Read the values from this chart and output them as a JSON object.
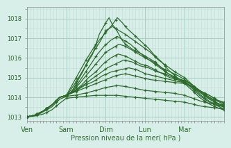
{
  "bg_color": "#d8eee8",
  "grid_major_color": "#a8ccc0",
  "grid_minor_color": "#c0ddd6",
  "line_color": "#2d6b2d",
  "xlabel": "Pression niveau de la mer( hPa )",
  "ylim": [
    1012.8,
    1018.6
  ],
  "xlim": [
    0,
    240
  ],
  "yticks": [
    1013,
    1014,
    1015,
    1016,
    1017,
    1018
  ],
  "day_labels": [
    "Ven",
    "Sam",
    "Dim",
    "Lun",
    "Mar"
  ],
  "day_positions": [
    0,
    48,
    96,
    144,
    192
  ],
  "series": [
    {
      "points": [
        [
          0,
          1013.0
        ],
        [
          10,
          1013.1
        ],
        [
          20,
          1013.3
        ],
        [
          30,
          1013.6
        ],
        [
          40,
          1014.0
        ],
        [
          48,
          1014.1
        ],
        [
          52,
          1014.3
        ],
        [
          60,
          1014.8
        ],
        [
          70,
          1015.5
        ],
        [
          80,
          1016.2
        ],
        [
          88,
          1017.2
        ],
        [
          96,
          1017.8
        ],
        [
          100,
          1018.05
        ],
        [
          104,
          1017.7
        ],
        [
          108,
          1017.5
        ],
        [
          112,
          1017.2
        ],
        [
          116,
          1016.9
        ],
        [
          120,
          1016.7
        ],
        [
          130,
          1016.4
        ],
        [
          140,
          1016.2
        ],
        [
          148,
          1016.0
        ],
        [
          156,
          1015.8
        ],
        [
          164,
          1015.5
        ],
        [
          172,
          1015.2
        ],
        [
          180,
          1015.0
        ],
        [
          192,
          1014.8
        ],
        [
          200,
          1014.5
        ],
        [
          210,
          1014.1
        ],
        [
          220,
          1013.8
        ],
        [
          230,
          1013.6
        ],
        [
          240,
          1013.4
        ]
      ]
    },
    {
      "points": [
        [
          0,
          1013.0
        ],
        [
          10,
          1013.1
        ],
        [
          20,
          1013.3
        ],
        [
          30,
          1013.6
        ],
        [
          40,
          1014.0
        ],
        [
          48,
          1014.1
        ],
        [
          60,
          1015.0
        ],
        [
          72,
          1015.9
        ],
        [
          84,
          1016.7
        ],
        [
          96,
          1017.3
        ],
        [
          104,
          1017.7
        ],
        [
          110,
          1018.05
        ],
        [
          116,
          1017.8
        ],
        [
          122,
          1017.5
        ],
        [
          130,
          1017.2
        ],
        [
          140,
          1016.8
        ],
        [
          148,
          1016.5
        ],
        [
          156,
          1016.1
        ],
        [
          164,
          1015.8
        ],
        [
          172,
          1015.4
        ],
        [
          180,
          1015.1
        ],
        [
          192,
          1014.7
        ],
        [
          200,
          1014.4
        ],
        [
          210,
          1014.0
        ],
        [
          220,
          1013.7
        ],
        [
          230,
          1013.5
        ],
        [
          240,
          1013.35
        ]
      ]
    },
    {
      "points": [
        [
          0,
          1013.0
        ],
        [
          10,
          1013.1
        ],
        [
          20,
          1013.3
        ],
        [
          30,
          1013.6
        ],
        [
          40,
          1014.0
        ],
        [
          48,
          1014.1
        ],
        [
          52,
          1014.2
        ],
        [
          56,
          1014.4
        ],
        [
          60,
          1014.7
        ],
        [
          68,
          1015.3
        ],
        [
          76,
          1016.0
        ],
        [
          84,
          1016.5
        ],
        [
          90,
          1016.9
        ],
        [
          96,
          1017.4
        ],
        [
          104,
          1017.6
        ],
        [
          112,
          1017.4
        ],
        [
          120,
          1017.2
        ],
        [
          130,
          1016.9
        ],
        [
          140,
          1016.6
        ],
        [
          150,
          1016.3
        ],
        [
          160,
          1015.9
        ],
        [
          170,
          1015.6
        ],
        [
          180,
          1015.3
        ],
        [
          192,
          1015.0
        ],
        [
          200,
          1014.7
        ],
        [
          210,
          1014.3
        ],
        [
          220,
          1014.0
        ],
        [
          230,
          1013.7
        ],
        [
          240,
          1013.5
        ]
      ]
    },
    {
      "points": [
        [
          0,
          1013.0
        ],
        [
          10,
          1013.1
        ],
        [
          20,
          1013.3
        ],
        [
          30,
          1013.6
        ],
        [
          40,
          1014.0
        ],
        [
          48,
          1014.1
        ],
        [
          55,
          1014.3
        ],
        [
          62,
          1014.7
        ],
        [
          70,
          1015.2
        ],
        [
          78,
          1015.7
        ],
        [
          86,
          1016.2
        ],
        [
          94,
          1016.6
        ],
        [
          102,
          1016.9
        ],
        [
          110,
          1017.1
        ],
        [
          118,
          1016.9
        ],
        [
          126,
          1016.7
        ],
        [
          134,
          1016.4
        ],
        [
          142,
          1016.1
        ],
        [
          152,
          1015.8
        ],
        [
          162,
          1015.5
        ],
        [
          172,
          1015.2
        ],
        [
          182,
          1015.0
        ],
        [
          192,
          1014.8
        ],
        [
          202,
          1014.5
        ],
        [
          212,
          1014.1
        ],
        [
          222,
          1013.8
        ],
        [
          232,
          1013.6
        ],
        [
          240,
          1013.5
        ]
      ]
    },
    {
      "points": [
        [
          0,
          1013.0
        ],
        [
          10,
          1013.1
        ],
        [
          20,
          1013.3
        ],
        [
          30,
          1013.6
        ],
        [
          40,
          1014.0
        ],
        [
          48,
          1014.1
        ],
        [
          56,
          1014.3
        ],
        [
          64,
          1014.7
        ],
        [
          72,
          1015.1
        ],
        [
          80,
          1015.5
        ],
        [
          88,
          1015.9
        ],
        [
          96,
          1016.3
        ],
        [
          104,
          1016.5
        ],
        [
          112,
          1016.7
        ],
        [
          120,
          1016.6
        ],
        [
          128,
          1016.4
        ],
        [
          136,
          1016.2
        ],
        [
          144,
          1016.0
        ],
        [
          154,
          1015.8
        ],
        [
          164,
          1015.5
        ],
        [
          174,
          1015.3
        ],
        [
          184,
          1015.1
        ],
        [
          192,
          1014.9
        ],
        [
          202,
          1014.6
        ],
        [
          212,
          1014.3
        ],
        [
          222,
          1014.0
        ],
        [
          232,
          1013.7
        ],
        [
          240,
          1013.55
        ]
      ]
    },
    {
      "points": [
        [
          0,
          1013.0
        ],
        [
          10,
          1013.1
        ],
        [
          20,
          1013.3
        ],
        [
          30,
          1013.6
        ],
        [
          40,
          1014.0
        ],
        [
          48,
          1014.1
        ],
        [
          57,
          1014.3
        ],
        [
          66,
          1014.6
        ],
        [
          75,
          1015.0
        ],
        [
          84,
          1015.3
        ],
        [
          93,
          1015.7
        ],
        [
          102,
          1016.0
        ],
        [
          111,
          1016.2
        ],
        [
          120,
          1016.1
        ],
        [
          129,
          1015.9
        ],
        [
          138,
          1015.7
        ],
        [
          147,
          1015.6
        ],
        [
          156,
          1015.4
        ],
        [
          165,
          1015.2
        ],
        [
          174,
          1015.0
        ],
        [
          183,
          1014.9
        ],
        [
          192,
          1014.75
        ],
        [
          202,
          1014.5
        ],
        [
          212,
          1014.2
        ],
        [
          222,
          1013.9
        ],
        [
          232,
          1013.7
        ],
        [
          240,
          1013.6
        ]
      ]
    },
    {
      "points": [
        [
          0,
          1013.0
        ],
        [
          10,
          1013.1
        ],
        [
          20,
          1013.3
        ],
        [
          30,
          1013.6
        ],
        [
          40,
          1014.0
        ],
        [
          48,
          1014.1
        ],
        [
          58,
          1014.3
        ],
        [
          68,
          1014.6
        ],
        [
          78,
          1014.9
        ],
        [
          88,
          1015.2
        ],
        [
          98,
          1015.5
        ],
        [
          108,
          1015.7
        ],
        [
          118,
          1015.9
        ],
        [
          128,
          1015.8
        ],
        [
          138,
          1015.6
        ],
        [
          148,
          1015.5
        ],
        [
          158,
          1015.3
        ],
        [
          168,
          1015.2
        ],
        [
          178,
          1015.0
        ],
        [
          188,
          1014.9
        ],
        [
          192,
          1014.85
        ],
        [
          202,
          1014.6
        ],
        [
          212,
          1014.3
        ],
        [
          222,
          1014.0
        ],
        [
          232,
          1013.8
        ],
        [
          240,
          1013.65
        ]
      ]
    },
    {
      "points": [
        [
          0,
          1013.0
        ],
        [
          10,
          1013.1
        ],
        [
          20,
          1013.3
        ],
        [
          30,
          1013.6
        ],
        [
          40,
          1014.0
        ],
        [
          48,
          1014.1
        ],
        [
          59,
          1014.3
        ],
        [
          70,
          1014.6
        ],
        [
          81,
          1014.8
        ],
        [
          92,
          1015.1
        ],
        [
          103,
          1015.3
        ],
        [
          114,
          1015.4
        ],
        [
          124,
          1015.5
        ],
        [
          134,
          1015.4
        ],
        [
          144,
          1015.2
        ],
        [
          154,
          1015.1
        ],
        [
          164,
          1015.0
        ],
        [
          174,
          1014.9
        ],
        [
          184,
          1014.8
        ],
        [
          192,
          1014.75
        ],
        [
          202,
          1014.55
        ],
        [
          212,
          1014.3
        ],
        [
          222,
          1014.1
        ],
        [
          232,
          1013.85
        ],
        [
          240,
          1013.7
        ]
      ]
    },
    {
      "points": [
        [
          0,
          1013.0
        ],
        [
          10,
          1013.1
        ],
        [
          20,
          1013.3
        ],
        [
          30,
          1013.6
        ],
        [
          40,
          1014.0
        ],
        [
          48,
          1014.1
        ],
        [
          60,
          1014.3
        ],
        [
          72,
          1014.5
        ],
        [
          84,
          1014.7
        ],
        [
          96,
          1014.9
        ],
        [
          108,
          1015.1
        ],
        [
          120,
          1015.2
        ],
        [
          130,
          1015.1
        ],
        [
          140,
          1015.0
        ],
        [
          150,
          1014.9
        ],
        [
          160,
          1014.85
        ],
        [
          170,
          1014.8
        ],
        [
          180,
          1014.75
        ],
        [
          192,
          1014.7
        ],
        [
          202,
          1014.5
        ],
        [
          212,
          1014.3
        ],
        [
          222,
          1014.1
        ],
        [
          232,
          1013.85
        ],
        [
          240,
          1013.75
        ]
      ]
    },
    {
      "points": [
        [
          0,
          1013.0
        ],
        [
          15,
          1013.15
        ],
        [
          30,
          1013.5
        ],
        [
          40,
          1013.9
        ],
        [
          48,
          1014.05
        ],
        [
          58,
          1014.1
        ],
        [
          70,
          1014.2
        ],
        [
          84,
          1014.35
        ],
        [
          96,
          1014.5
        ],
        [
          110,
          1014.6
        ],
        [
          120,
          1014.55
        ],
        [
          132,
          1014.45
        ],
        [
          144,
          1014.35
        ],
        [
          156,
          1014.3
        ],
        [
          168,
          1014.25
        ],
        [
          180,
          1014.2
        ],
        [
          192,
          1014.1
        ],
        [
          202,
          1013.95
        ],
        [
          212,
          1013.8
        ],
        [
          222,
          1013.7
        ],
        [
          232,
          1013.6
        ],
        [
          240,
          1013.55
        ]
      ]
    },
    {
      "points": [
        [
          0,
          1013.0
        ],
        [
          10,
          1013.05
        ],
        [
          20,
          1013.15
        ],
        [
          30,
          1013.35
        ],
        [
          40,
          1013.7
        ],
        [
          48,
          1013.95
        ],
        [
          58,
          1014.0
        ],
        [
          70,
          1014.05
        ],
        [
          84,
          1014.1
        ],
        [
          96,
          1014.1
        ],
        [
          110,
          1014.1
        ],
        [
          120,
          1014.05
        ],
        [
          132,
          1014.0
        ],
        [
          144,
          1013.95
        ],
        [
          156,
          1013.9
        ],
        [
          168,
          1013.85
        ],
        [
          180,
          1013.8
        ],
        [
          192,
          1013.75
        ],
        [
          202,
          1013.65
        ],
        [
          212,
          1013.55
        ],
        [
          222,
          1013.5
        ],
        [
          232,
          1013.45
        ],
        [
          240,
          1013.4
        ]
      ]
    }
  ],
  "marker_interval": 12,
  "linewidth": 0.9,
  "markersize": 3.5
}
